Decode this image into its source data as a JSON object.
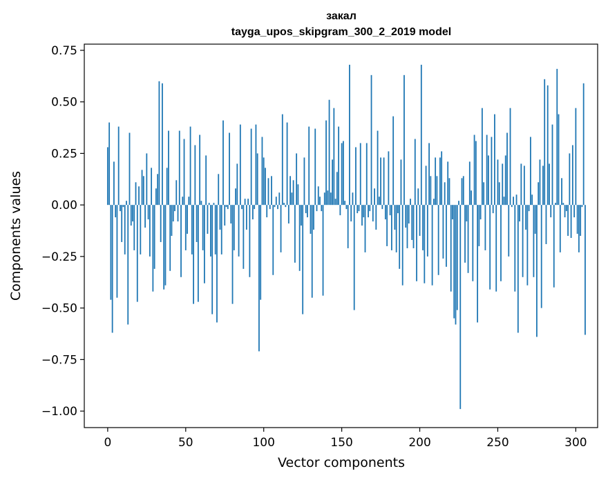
{
  "chart_data": {
    "type": "bar",
    "title": "закал",
    "subtitle": "tayga_upos_skipgram_300_2_2019 model",
    "xlabel": "Vector components",
    "ylabel": "Components values",
    "xlim": [
      -15,
      314
    ],
    "ylim": [
      -1.08,
      0.78
    ],
    "xticks": [
      0,
      50,
      100,
      150,
      200,
      250,
      300
    ],
    "yticks": [
      -1.0,
      -0.75,
      -0.5,
      -0.25,
      0.0,
      0.25,
      0.5,
      0.75
    ],
    "xtick_labels": [
      "0",
      "50",
      "100",
      "150",
      "200",
      "250",
      "300"
    ],
    "ytick_labels": [
      "−1.00",
      "−0.75",
      "−0.50",
      "−0.25",
      "0.00",
      "0.25",
      "0.50",
      "0.75"
    ],
    "bar_color": "#1f77b4",
    "values": [
      0.28,
      0.4,
      -0.46,
      -0.62,
      0.21,
      -0.06,
      -0.45,
      0.38,
      -0.03,
      -0.18,
      -0.01,
      -0.24,
      0.02,
      -0.58,
      0.35,
      -0.1,
      -0.08,
      -0.22,
      0.11,
      -0.47,
      0.09,
      -0.24,
      0.17,
      0.14,
      -0.11,
      0.25,
      -0.07,
      -0.25,
      0.18,
      -0.42,
      -0.31,
      0.08,
      0.15,
      0.6,
      -0.18,
      0.59,
      -0.41,
      -0.39,
      0.18,
      0.36,
      -0.32,
      -0.15,
      -0.08,
      -0.03,
      0.12,
      -0.08,
      0.36,
      -0.35,
      0.04,
      0.32,
      -0.22,
      -0.14,
      0.04,
      0.38,
      -0.24,
      -0.48,
      0.29,
      -0.18,
      -0.47,
      0.34,
      0.02,
      -0.22,
      -0.38,
      0.24,
      -0.14,
      0.01,
      -0.25,
      -0.53,
      0.01,
      -0.24,
      -0.57,
      0.15,
      -0.12,
      -0.24,
      0.41,
      -0.1,
      -0.01,
      -0.02,
      0.35,
      -0.09,
      -0.48,
      -0.22,
      0.08,
      0.2,
      -0.25,
      0.39,
      -0.02,
      -0.31,
      0.03,
      -0.12,
      0.03,
      -0.35,
      0.37,
      -0.07,
      -0.02,
      0.39,
      0.25,
      -0.71,
      -0.46,
      0.33,
      0.23,
      0.18,
      -0.06,
      0.13,
      -0.02,
      0.14,
      -0.34,
      -0.01,
      0.04,
      -0.02,
      0.06,
      -0.23,
      0.44,
      0.01,
      -0.01,
      0.4,
      -0.09,
      0.14,
      0.06,
      0.12,
      -0.28,
      0.25,
      0.1,
      -0.32,
      -0.1,
      -0.53,
      0.23,
      -0.04,
      -0.06,
      0.38,
      -0.14,
      -0.45,
      -0.12,
      0.37,
      -0.03,
      0.09,
      0.04,
      -0.03,
      -0.44,
      0.06,
      0.41,
      0.07,
      0.51,
      0.06,
      0.22,
      0.47,
      0.03,
      0.16,
      0.38,
      -0.05,
      0.3,
      0.31,
      0.02,
      -0.02,
      -0.21,
      0.68,
      -0.08,
      0.06,
      -0.51,
      0.28,
      -0.04,
      -0.03,
      0.3,
      -0.1,
      -0.06,
      -0.23,
      0.3,
      -0.06,
      -0.03,
      0.63,
      -0.08,
      0.08,
      -0.12,
      0.36,
      0.04,
      0.23,
      -0.02,
      0.23,
      -0.07,
      -0.2,
      0.26,
      -0.05,
      -0.22,
      0.43,
      -0.12,
      -0.23,
      -0.04,
      -0.31,
      0.22,
      -0.39,
      0.63,
      -0.11,
      -0.21,
      -0.09,
      0.03,
      -0.17,
      -0.21,
      0.32,
      -0.37,
      0.08,
      -0.15,
      0.68,
      -0.22,
      -0.38,
      0.19,
      -0.25,
      0.3,
      0.14,
      -0.39,
      0.03,
      0.23,
      0.14,
      -0.34,
      0.23,
      0.26,
      -0.26,
      0.11,
      -0.3,
      0.21,
      0.13,
      -0.42,
      -0.07,
      -0.55,
      -0.58,
      -0.51,
      0.02,
      -0.99,
      0.13,
      0.14,
      -0.28,
      -0.08,
      -0.33,
      0.21,
      0.07,
      -0.37,
      0.34,
      0.31,
      -0.57,
      -0.2,
      -0.07,
      0.47,
      0.11,
      -0.22,
      0.34,
      0.24,
      -0.41,
      0.33,
      -0.04,
      0.44,
      -0.42,
      0.22,
      0.11,
      -0.37,
      0.2,
      0.04,
      0.24,
      0.35,
      -0.25,
      0.47,
      -0.01,
      0.04,
      -0.42,
      0.05,
      -0.62,
      -0.08,
      0.2,
      -0.35,
      0.19,
      -0.12,
      -0.39,
      -0.03,
      0.33,
      0.05,
      -0.35,
      -0.14,
      -0.64,
      0.11,
      0.22,
      -0.5,
      0.19,
      0.61,
      -0.19,
      0.58,
      0.2,
      -0.06,
      0.39,
      -0.4,
      0.01,
      0.66,
      0.44,
      -0.23,
      0.13,
      0.01,
      -0.06,
      -0.03,
      -0.15,
      0.25,
      -0.16,
      0.29,
      -0.06,
      0.47,
      -0.14,
      -0.23,
      -0.15,
      -0.01,
      0.59,
      -0.63
    ]
  }
}
